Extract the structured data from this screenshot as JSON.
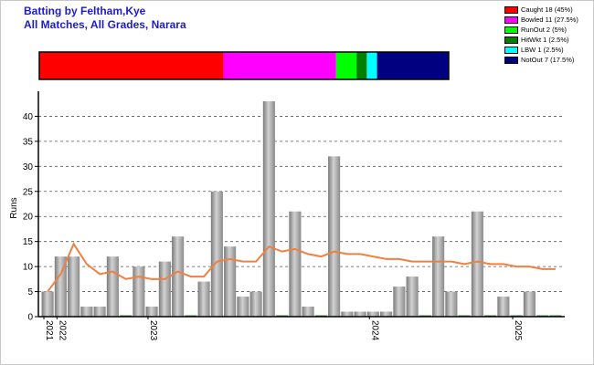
{
  "title_line1": "Batting by Feltham,Kye",
  "title_line2": "All Matches, All Grades, Narara",
  "legend": [
    {
      "label": "Caught 18 (45%)",
      "color": "#ff0000"
    },
    {
      "label": "Bowled 11 (27.5%)",
      "color": "#ff00ff"
    },
    {
      "label": "RunOut 2 (5%)",
      "color": "#00ff00"
    },
    {
      "label": "HitWkt 1 (2.5%)",
      "color": "#008000"
    },
    {
      "label": "LBW 1 (2.5%)",
      "color": "#00ffff"
    },
    {
      "label": "NotOut 7 (17.5%)",
      "color": "#000080"
    }
  ],
  "chart_data": [
    {
      "type": "bar",
      "orientation": "horizontal-stacked",
      "segments": [
        {
          "name": "Caught",
          "value": 18,
          "color": "#ff0000"
        },
        {
          "name": "Bowled",
          "value": 11,
          "color": "#ff00ff"
        },
        {
          "name": "RunOut",
          "value": 2,
          "color": "#00ff00"
        },
        {
          "name": "HitWkt",
          "value": 1,
          "color": "#008000"
        },
        {
          "name": "LBW",
          "value": 1,
          "color": "#00ffff"
        },
        {
          "name": "NotOut",
          "value": 7,
          "color": "#000080"
        }
      ]
    },
    {
      "type": "bar",
      "ylabel": "Runs",
      "ylim": [
        0,
        45
      ],
      "yticks": [
        0,
        5,
        10,
        15,
        20,
        25,
        30,
        35,
        40
      ],
      "grid": true,
      "year_labels": [
        {
          "label": "2021",
          "index": 0
        },
        {
          "label": "2022",
          "index": 1
        },
        {
          "label": "2023",
          "index": 8
        },
        {
          "label": "2024",
          "index": 25
        },
        {
          "label": "2025",
          "index": 36
        }
      ],
      "series": [
        {
          "type": "bar",
          "color": "#a0a0a0",
          "values": [
            5,
            12,
            12,
            2,
            2,
            12,
            0,
            10,
            2,
            11,
            16,
            0,
            7,
            25,
            14,
            4,
            5,
            43,
            0,
            21,
            2,
            0,
            32,
            1,
            1,
            1,
            1,
            6,
            8,
            0,
            16,
            5,
            0,
            21,
            0,
            4,
            0,
            5,
            0,
            0
          ]
        },
        {
          "type": "line",
          "color": "#f08040",
          "values": [
            5,
            8.5,
            14.5,
            10.5,
            8.5,
            9,
            7.5,
            8,
            7.5,
            7.5,
            9,
            8,
            8,
            11,
            11.5,
            11,
            11,
            14,
            13,
            13.5,
            12.5,
            12,
            13,
            12.5,
            12.5,
            12,
            11.5,
            11.5,
            11,
            11,
            11,
            11,
            10.5,
            11,
            10.5,
            10.5,
            10,
            10,
            9.5,
            9.5
          ]
        }
      ]
    }
  ]
}
